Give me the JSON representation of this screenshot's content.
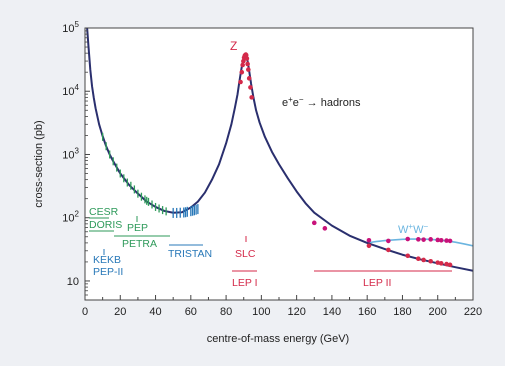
{
  "chart_data": {
    "type": "line",
    "title": "",
    "xlabel": "centre-of-mass energy (GeV)",
    "ylabel": "cross-section (pb)",
    "xlim": [
      0,
      220
    ],
    "ylim": [
      5,
      100000
    ],
    "yscale": "log",
    "grid": false,
    "x_ticks": [
      "0",
      "20",
      "40",
      "60",
      "80",
      "100",
      "120",
      "140",
      "160",
      "180",
      "200",
      "220"
    ],
    "y_ticks": [
      {
        "value": 100000,
        "base": "10",
        "exp": "5"
      },
      {
        "value": 10000,
        "base": "10",
        "exp": "4"
      },
      {
        "value": 1000,
        "base": "10",
        "exp": "3"
      },
      {
        "value": 100,
        "base": "10",
        "exp": "2"
      },
      {
        "value": 10,
        "base": "10",
        "exp": ""
      }
    ],
    "process_label": {
      "pre": "e",
      "pre_sup": "+",
      "mid": "e",
      "mid_sup": "−",
      "post": " → hadrons"
    },
    "z_label": "Z",
    "ww_label": {
      "base1": "W",
      "sup1": "+",
      "base2": "W",
      "sup2": "−"
    },
    "colors": {
      "curve": "#2a2f6e",
      "ww_curve": "#6bb5e0",
      "z_points": "#d42a4a",
      "lep2_points": "#c8127a",
      "low_points": "#2e9a5a",
      "tristan_points": "#2878b8",
      "green_label": "#2e9a5a",
      "blue_label": "#2878b8",
      "red_label": "#d42a4a"
    },
    "series": [
      {
        "role": "theory",
        "x": [
          1.2,
          2,
          3,
          4,
          5,
          6,
          8,
          10,
          12,
          14,
          16,
          20,
          25,
          30,
          35,
          40,
          45,
          50,
          55,
          60,
          64,
          68,
          72,
          76,
          80,
          83,
          85,
          86.5,
          87.5,
          88.5,
          89.3,
          90,
          90.6,
          91.2,
          91.8,
          92.4,
          93.2,
          94.2,
          95.5,
          97,
          99,
          102,
          106,
          110,
          115,
          120,
          125,
          130,
          140,
          150,
          160,
          170,
          180,
          190,
          200,
          210,
          220
        ],
        "y": [
          100000,
          50000,
          22000,
          12000,
          7800,
          5400,
          3000,
          1950,
          1350,
          1000,
          780,
          500,
          330,
          240,
          180,
          148,
          128,
          120,
          122,
          145,
          180,
          250,
          400,
          700,
          1500,
          3000,
          5500,
          9000,
          14000,
          21000,
          28000,
          33000,
          36000,
          36500,
          34000,
          28000,
          20000,
          13000,
          8000,
          5000,
          3200,
          1900,
          1100,
          700,
          420,
          260,
          170,
          120,
          75,
          52,
          40,
          32,
          26,
          22,
          19,
          16.5,
          14.5
        ]
      },
      {
        "role": "ww-theory",
        "name": "W+W-",
        "x": [
          160,
          165,
          170,
          175,
          180,
          185,
          190,
          195,
          200,
          205,
          210,
          215,
          220
        ],
        "y": [
          40,
          42,
          43.5,
          44.5,
          45.5,
          46,
          46,
          45.5,
          44.5,
          43,
          41,
          38.5,
          36
        ]
      },
      {
        "role": "lep1-z-data",
        "x": [
          88.2,
          88.9,
          89.4,
          89.8,
          90.2,
          90.6,
          91.0,
          91.2,
          91.4,
          91.8,
          92.2,
          92.6,
          93.1,
          93.8,
          94.5
        ],
        "y": [
          14000,
          20000,
          26000,
          30000,
          34000,
          36500,
          37500,
          38000,
          37000,
          33000,
          27000,
          22000,
          16000,
          11500,
          8000
        ]
      },
      {
        "role": "lep2-data",
        "x": [
          130,
          136,
          161,
          172,
          183,
          189,
          192,
          196,
          200,
          202,
          205,
          207
        ],
        "y": [
          83,
          68,
          44,
          43,
          46,
          45.5,
          45,
          45.5,
          44.5,
          44,
          43.5,
          43
        ]
      },
      {
        "role": "lep2-hadron-data",
        "x": [
          161,
          172,
          183,
          189,
          192,
          196,
          200,
          202,
          205,
          207
        ],
        "y": [
          36,
          31,
          25,
          22.5,
          21.5,
          20.5,
          19.5,
          19,
          18.5,
          18
        ]
      },
      {
        "role": "low-energy-data",
        "x": [
          10,
          12,
          14,
          16,
          18,
          20,
          22,
          24,
          26,
          28,
          30,
          32,
          34,
          35,
          36,
          38,
          40,
          42,
          44,
          46
        ],
        "y": [
          1900,
          1350,
          1000,
          780,
          620,
          500,
          420,
          360,
          320,
          280,
          240,
          215,
          195,
          185,
          178,
          162,
          148,
          140,
          132,
          126
        ]
      },
      {
        "role": "tristan-data",
        "x": [
          50,
          52,
          54,
          56,
          57,
          58,
          60,
          61,
          62,
          63,
          64
        ],
        "y": [
          119,
          119,
          120,
          121,
          122,
          124,
          127,
          129,
          131,
          134,
          137
        ]
      }
    ],
    "annotations": [
      {
        "text": "CESR",
        "color_key": "green_label",
        "x_from": 8,
        "x_to": 12
      },
      {
        "text": "DORIS",
        "color_key": "green_label",
        "x_from": 8,
        "x_to": 12
      },
      {
        "text": "PEP",
        "color_key": "green_label",
        "x_from": 29,
        "x_to": 29
      },
      {
        "text": "PETRA",
        "color_key": "green_label",
        "x_from": 12,
        "x_to": 46
      },
      {
        "text": "KEKB",
        "color_key": "blue_label",
        "x_from": 10.6,
        "x_to": 10.6
      },
      {
        "text": "PEP-II",
        "color_key": "blue_label",
        "x_from": 10.6,
        "x_to": 10.6
      },
      {
        "text": "TRISTAN",
        "color_key": "blue_label",
        "x_from": 50,
        "x_to": 64
      },
      {
        "text": "SLC",
        "color_key": "red_label",
        "x_from": 91.2,
        "x_to": 91.2
      },
      {
        "text": "LEP I",
        "color_key": "red_label",
        "x_from": 88,
        "x_to": 95
      },
      {
        "text": "LEP II",
        "color_key": "red_label",
        "x_from": 130,
        "x_to": 209
      }
    ]
  }
}
